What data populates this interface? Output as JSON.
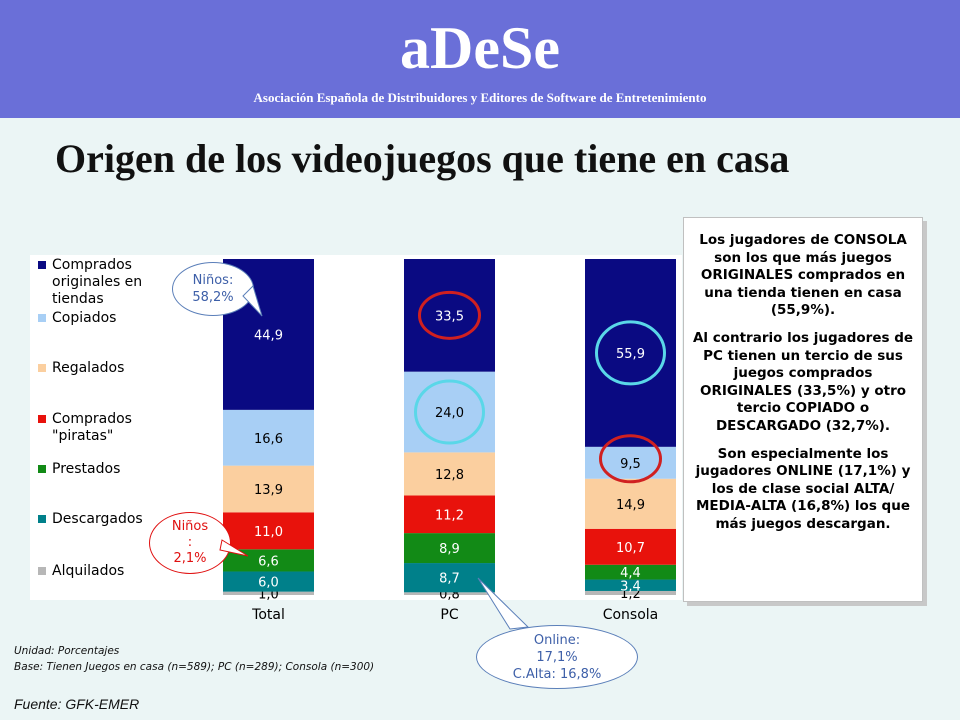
{
  "header": {
    "brand": "aDeSe",
    "subtitle": "Asociación Española de Distribuidores y Editores de Software de Entretenimiento"
  },
  "title": "Origen de los videojuegos que tiene en casa",
  "chart_data": {
    "type": "bar",
    "stacked": true,
    "categories": [
      "Total",
      "PC",
      "Consola"
    ],
    "series": [
      {
        "name": "Alquilados",
        "values": [
          1.0,
          0.8,
          1.2
        ],
        "labels": [
          "1,0",
          "0,8",
          "1,2"
        ],
        "color": "#b7b7b7"
      },
      {
        "name": "Descargados",
        "values": [
          6.0,
          8.7,
          3.4
        ],
        "labels": [
          "6,0",
          "8,7",
          "3,4"
        ],
        "color": "#00808a"
      },
      {
        "name": "Prestados",
        "values": [
          6.6,
          8.9,
          4.4
        ],
        "labels": [
          "6,6",
          "8,9",
          "4,4"
        ],
        "color": "#128a16"
      },
      {
        "name": "Comprados \"piratas\"",
        "values": [
          11.0,
          11.2,
          10.7
        ],
        "labels": [
          "11,0",
          "11,2",
          "10,7"
        ],
        "color": "#e8120c"
      },
      {
        "name": "Regalados",
        "values": [
          13.9,
          12.8,
          14.9
        ],
        "labels": [
          "13,9",
          "12,8",
          "14,9"
        ],
        "color": "#fbcf9f"
      },
      {
        "name": "Copiados",
        "values": [
          16.6,
          24.0,
          9.5
        ],
        "labels": [
          "16,6",
          "24,0",
          "9,5"
        ],
        "color": "#a8cff5"
      },
      {
        "name": "Comprados originales en tiendas",
        "values": [
          44.9,
          33.5,
          55.9
        ],
        "labels": [
          "44,9",
          "33,5",
          "55,9"
        ],
        "color": "#0a0a82"
      }
    ],
    "legend": [
      {
        "lines": [
          "Comprados",
          "originales en",
          "tiendas"
        ],
        "color": "#0a0a82"
      },
      {
        "lines": [
          "Copiados"
        ],
        "color": "#a8cff5"
      },
      {
        "lines": [
          "Regalados"
        ],
        "color": "#fbcf9f"
      },
      {
        "lines": [
          "Comprados",
          "\"piratas\""
        ],
        "color": "#e8120c"
      },
      {
        "lines": [
          "Prestados"
        ],
        "color": "#128a16"
      },
      {
        "lines": [
          "Descargados"
        ],
        "color": "#00808a"
      },
      {
        "lines": [
          "Alquilados"
        ],
        "color": "#b7b7b7"
      }
    ],
    "legend_position": "left",
    "highlight_circles": [
      {
        "category": "PC",
        "series": "Comprados originales en tiendas",
        "color": "#d02020"
      },
      {
        "category": "PC",
        "series": "Copiados",
        "color": "#5ad7e8"
      },
      {
        "category": "Consola",
        "series": "Comprados originales en tiendas",
        "color": "#5ad7e8"
      },
      {
        "category": "Consola",
        "series": "Copiados",
        "color": "#d02020"
      }
    ]
  },
  "callouts": {
    "ninos_original": "Niños:\n58,2%",
    "ninos_pirata": "Niños\n:\n2,1%",
    "online": "Online:\n17,1%\nC.Alta: 16,8%"
  },
  "infobox": {
    "p1": "Los jugadores de CONSOLA son los que más juegos ORIGINALES comprados en una tienda tienen en casa (55,9%).",
    "p2": "Al contrario los jugadores de PC tienen un tercio de sus juegos comprados ORIGINALES (33,5%) y otro tercio COPIADO o DESCARGADO (32,7%).",
    "p3": "Son especialmente los jugadores ONLINE (17,1%) y los de clase social ALTA/ MEDIA-ALTA (16,8%) los que más juegos descargan."
  },
  "footnote": {
    "unit": "Unidad: Porcentajes",
    "base": "Base: Tienen Juegos en casa (n=589); PC (n=289); Consola (n=300)"
  },
  "source": "Fuente: GFK-EMER"
}
